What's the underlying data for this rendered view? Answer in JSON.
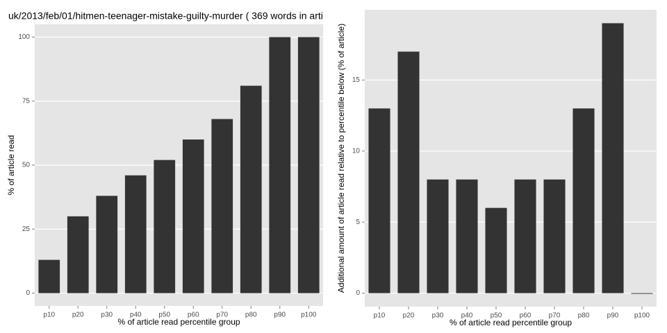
{
  "chart_data": [
    {
      "type": "bar",
      "title": "uk/2013/feb/01/hitmen-teenager-mistake-guilty-murder ( 369 words in arti",
      "x_label": "% of article read percentile group",
      "y_label": "% of article read",
      "categories": [
        "p10",
        "p20",
        "p30",
        "p40",
        "p50",
        "p60",
        "p70",
        "p80",
        "p90",
        "p100"
      ],
      "values": [
        13,
        30,
        38,
        46,
        52,
        60,
        68,
        81,
        100,
        100
      ],
      "color": "#333333",
      "ylim": [
        -5,
        105
      ],
      "yticks": [
        0,
        25,
        50,
        75,
        100
      ],
      "grid": true
    },
    {
      "type": "bar",
      "x_label": "% of article read percentile group",
      "y_label": "Additional amount of article read relative to percentile below (% of article)",
      "categories": [
        "p10",
        "p20",
        "p30",
        "p40",
        "p50",
        "p60",
        "p70",
        "p80",
        "p90",
        "p100"
      ],
      "values": [
        13,
        17,
        8,
        8,
        6,
        8,
        8,
        13,
        19,
        0
      ],
      "color": "#333333",
      "ylim": [
        -0.95,
        19.95
      ],
      "yticks": [
        0,
        5,
        10,
        15
      ],
      "grid": true
    }
  ]
}
